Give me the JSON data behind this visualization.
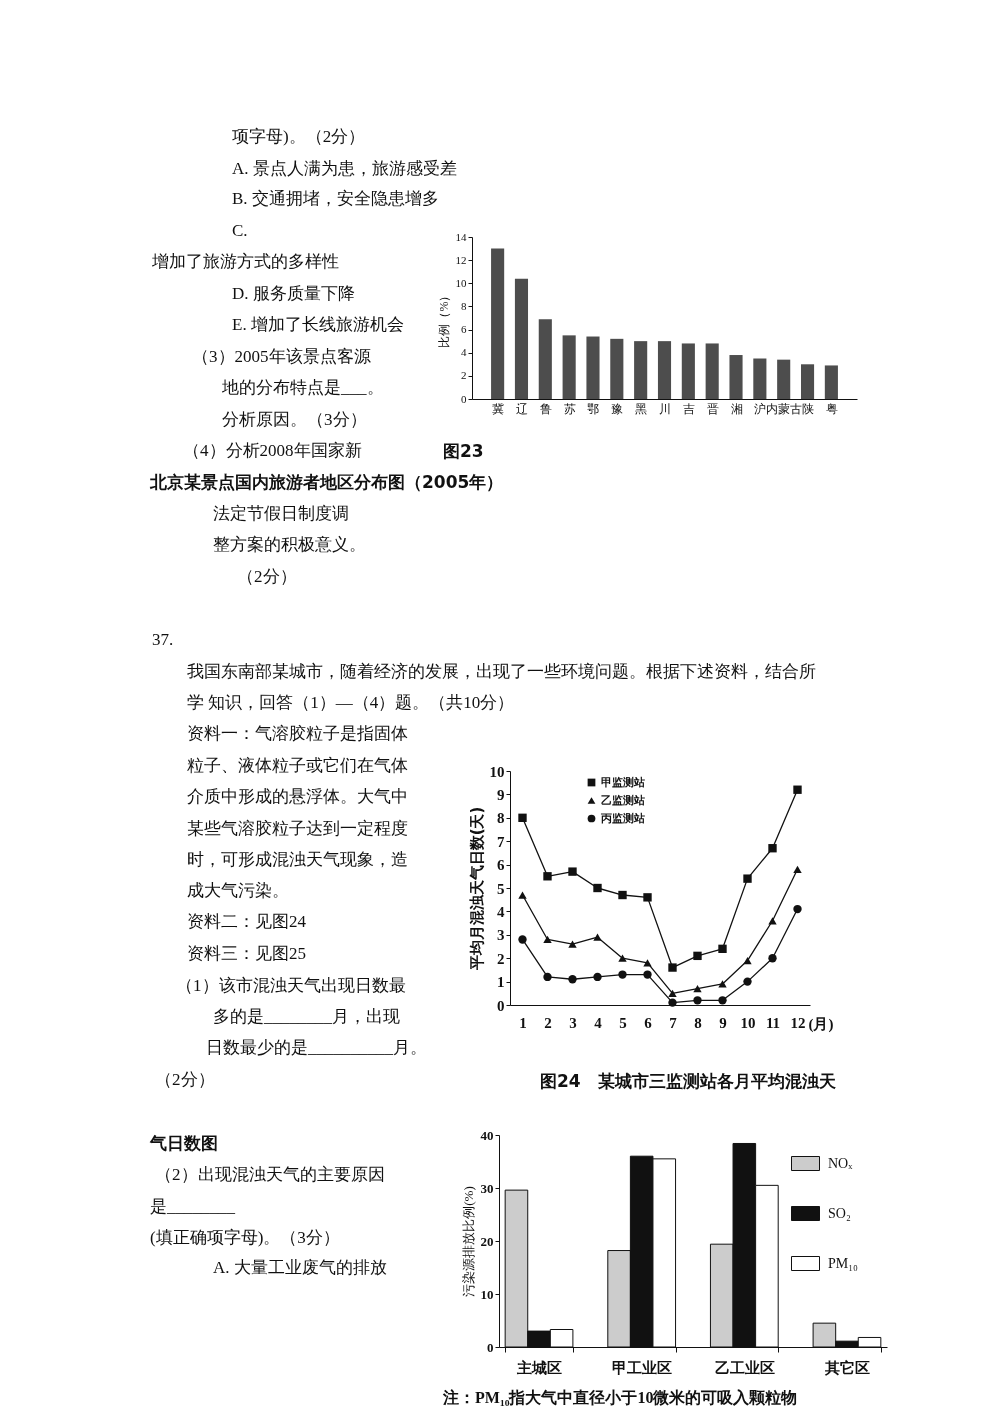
{
  "chart_data": [
    {
      "type": "other",
      "annotations": [
        "项字母)。（2分）",
        "A. 景点人满为患，旅游感受差",
        "B. 交通拥堵，安全隐患增多",
        "C.",
        "增加了旅游方式的多样性",
        "D. 服务质量下降",
        "E. 增加了长线旅游机会",
        "（3）2005年该景点客源",
        "地的分布特点是___。",
        "分析原因。（3分）",
        "（4）分析2008年国家新"
      ]
    },
    {
      "type": "bar",
      "title": "图23",
      "subtitle": "北京某景点国内旅游者地区分布图（2005年）",
      "ylabel": "比例（%）",
      "categories": [
        "冀",
        "辽",
        "鲁",
        "苏",
        "鄂",
        "豫",
        "黑",
        "川",
        "吉",
        "晋",
        "湘",
        "沪",
        "内蒙古",
        "陕",
        "粤"
      ],
      "values": [
        13.0,
        10.4,
        6.9,
        5.5,
        5.4,
        5.2,
        5.0,
        5.0,
        4.8,
        4.8,
        3.8,
        3.5,
        3.4,
        3.0,
        2.9
      ],
      "color": "#4d4d4d",
      "ylim": [
        0,
        14
      ],
      "yticks": [
        0,
        2,
        4,
        6,
        8,
        10,
        12,
        14
      ]
    },
    {
      "type": "other",
      "annotations": [
        "法定节假日制度调",
        "整方案的积极意义。",
        "（2分）",
        "37.",
        "我国东南部某城市，随着经济的发展，出现了一些环境问题。根据下述资料，结合所",
        "学 知识，回答（1）—（4）题。（共10分）",
        "资料一：气溶胶粒子是指固体",
        "粒子、液体粒子或它们在气体",
        "介质中形成的悬浮体。大气中",
        "某些气溶胶粒子达到一定程度",
        "时，可形成混浊天气现象，造",
        "成大气污染。",
        "资料二：见图24",
        "资料三：见图25",
        "（1）该市混浊天气出现日数最",
        "多的是________月，出现",
        "日数最少的是__________月。",
        "（2分）"
      ]
    },
    {
      "type": "line",
      "title": "图24　某城市三监测站各月平均混浊天",
      "xlabel": "(月)",
      "ylabel": "平均月混浊天气日数(天)",
      "categories": [
        "1",
        "2",
        "3",
        "4",
        "5",
        "6",
        "7",
        "8",
        "9",
        "10",
        "11",
        "12"
      ],
      "series": [
        {
          "name": "甲监测站",
          "color": "#111111",
          "marker": "square",
          "values": [
            8.0,
            5.5,
            5.7,
            5.0,
            4.7,
            4.6,
            1.6,
            2.1,
            2.4,
            5.4,
            6.7,
            9.2
          ]
        },
        {
          "name": "乙监测站",
          "color": "#111111",
          "marker": "triangle",
          "values": [
            4.7,
            2.8,
            2.6,
            2.9,
            2.0,
            1.8,
            0.5,
            0.7,
            0.9,
            1.9,
            3.6,
            5.8
          ]
        },
        {
          "name": "丙监测站",
          "color": "#111111",
          "marker": "circle",
          "values": [
            2.8,
            1.2,
            1.1,
            1.2,
            1.3,
            1.3,
            0.1,
            0.2,
            0.2,
            1.0,
            2.0,
            4.1
          ]
        }
      ],
      "ylim": [
        0,
        10
      ],
      "yticks": [
        0,
        1,
        2,
        3,
        4,
        5,
        6,
        7,
        8,
        9,
        10
      ],
      "legend": "top left",
      "line_style": "solid"
    },
    {
      "type": "other",
      "annotations": [
        "气日数图",
        "（2）出现混浊天气的主要原因",
        "是________",
        "(填正确项字母)。（3分）",
        "A. 大量工业废气的排放"
      ]
    },
    {
      "type": "bar",
      "ylabel": "污染源排放比例(%)",
      "annotations": [
        "注：PM₁₀指大气中直径小于10微米的可吸入颗粒物"
      ],
      "categories": [
        "主城区",
        "甲工业区",
        "乙工业区",
        "其它区"
      ],
      "series": [
        {
          "name": "NOₓ",
          "color": "#cccccc",
          "values": [
            29.6,
            18.2,
            19.4,
            4.5
          ]
        },
        {
          "name": "SO₂",
          "color": "#111111",
          "values": [
            3.0,
            36.0,
            38.4,
            1.1
          ]
        },
        {
          "name": "PM₁₀",
          "color": "#ffffff",
          "values": [
            3.3,
            35.5,
            30.5,
            1.8
          ]
        }
      ],
      "ylim": [
        0,
        40
      ],
      "yticks": [
        0,
        10,
        20,
        30,
        40
      ],
      "legend": "top right"
    }
  ]
}
